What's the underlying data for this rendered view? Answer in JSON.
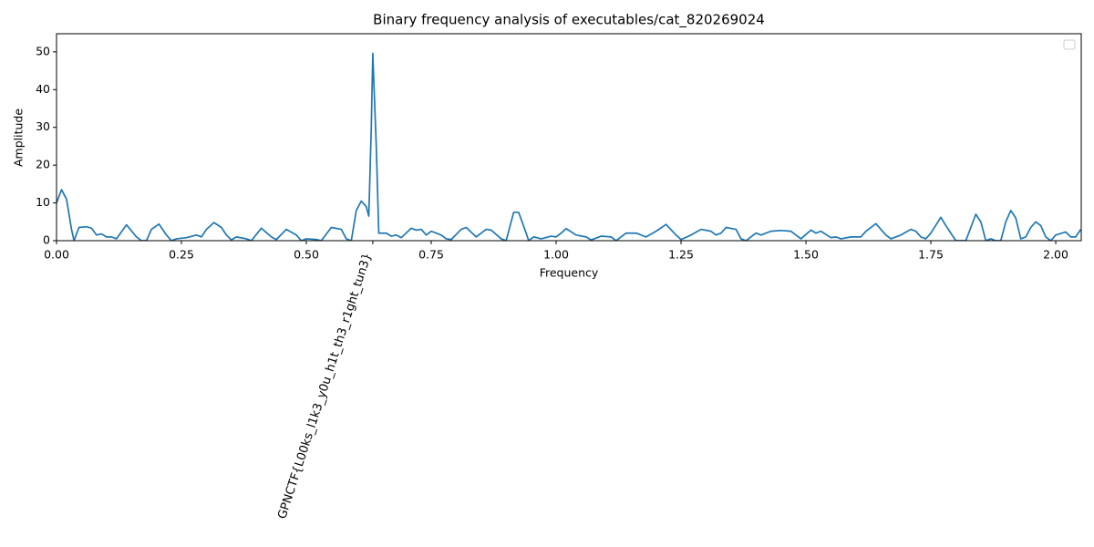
{
  "chart_data": {
    "type": "line",
    "title": "Binary frequency analysis of executables/cat_820269024",
    "xlabel": "Frequency",
    "ylabel": "Amplitude",
    "xlim": [
      0,
      2.051
    ],
    "ylim": [
      0,
      54.8
    ],
    "xticks": [
      {
        "value": 0,
        "label": "0.00"
      },
      {
        "value": 0.25,
        "label": "0.25"
      },
      {
        "value": 0.5,
        "label": "0.50"
      },
      {
        "value": 0.633,
        "label": "GPNCTF{L00ks_l1k3_y0u_h1t_th3_r1ght_tun3}"
      },
      {
        "value": 0.75,
        "label": "0.75"
      },
      {
        "value": 1,
        "label": "1.00"
      },
      {
        "value": 1.25,
        "label": "1.25"
      },
      {
        "value": 1.5,
        "label": "1.50"
      },
      {
        "value": 1.75,
        "label": "1.75"
      },
      {
        "value": 2,
        "label": "2.00"
      }
    ],
    "yticks": [
      0,
      10,
      20,
      30,
      40,
      50
    ],
    "series": [
      {
        "color": "#1f77b4",
        "x": [
          0,
          0.01,
          0.02,
          0.03,
          0.035,
          0.045,
          0.06,
          0.07,
          0.08,
          0.09,
          0.1,
          0.11,
          0.12,
          0.14,
          0.16,
          0.17,
          0.18,
          0.19,
          0.205,
          0.22,
          0.23,
          0.24,
          0.26,
          0.28,
          0.29,
          0.3,
          0.315,
          0.33,
          0.34,
          0.35,
          0.36,
          0.38,
          0.39,
          0.41,
          0.43,
          0.44,
          0.46,
          0.48,
          0.49,
          0.5,
          0.52,
          0.53,
          0.55,
          0.57,
          0.58,
          0.59,
          0.6,
          0.61,
          0.62,
          0.625,
          0.63,
          0.633,
          0.64,
          0.645,
          0.66,
          0.67,
          0.68,
          0.69,
          0.71,
          0.72,
          0.73,
          0.74,
          0.75,
          0.77,
          0.78,
          0.79,
          0.81,
          0.82,
          0.84,
          0.86,
          0.87,
          0.89,
          0.9,
          0.915,
          0.925,
          0.94,
          0.945,
          0.955,
          0.97,
          0.99,
          1,
          1.01,
          1.02,
          1.04,
          1.06,
          1.07,
          1.09,
          1.11,
          1.12,
          1.14,
          1.16,
          1.18,
          1.2,
          1.22,
          1.24,
          1.25,
          1.27,
          1.29,
          1.31,
          1.32,
          1.33,
          1.34,
          1.36,
          1.37,
          1.38,
          1.4,
          1.41,
          1.43,
          1.45,
          1.47,
          1.48,
          1.49,
          1.51,
          1.52,
          1.53,
          1.55,
          1.56,
          1.57,
          1.59,
          1.61,
          1.62,
          1.64,
          1.66,
          1.67,
          1.69,
          1.71,
          1.72,
          1.73,
          1.74,
          1.75,
          1.77,
          1.78,
          1.79,
          1.8,
          1.82,
          1.84,
          1.85,
          1.86,
          1.87,
          1.88,
          1.89,
          1.9,
          1.91,
          1.92,
          1.93,
          1.94,
          1.95,
          1.96,
          1.97,
          1.98,
          1.99,
          2,
          2.02,
          2.03,
          2.04,
          2.05
        ],
        "values": [
          10,
          13.5,
          11,
          3,
          0,
          3.5,
          3.7,
          3.3,
          1.5,
          1.8,
          1,
          1,
          0.5,
          4.2,
          1,
          0,
          0,
          3,
          4.4,
          1.5,
          0,
          0.5,
          0.8,
          1.5,
          1,
          3,
          4.8,
          3.5,
          1.5,
          0.2,
          1,
          0.5,
          0,
          3.3,
          1,
          0.3,
          3,
          1.5,
          0,
          0.5,
          0.3,
          0,
          3.5,
          3,
          0.5,
          0,
          8,
          10.5,
          9,
          6.5,
          30,
          49.6,
          25,
          2,
          2,
          1.2,
          1.5,
          0.8,
          3.3,
          2.8,
          3,
          1.5,
          2.5,
          1.5,
          0.5,
          0.3,
          3,
          3.5,
          1,
          3,
          2.8,
          0.5,
          0,
          7.5,
          7.5,
          2,
          0,
          1,
          0.5,
          1.2,
          1,
          2,
          3.2,
          1.5,
          1,
          0.2,
          1.2,
          1,
          0,
          2,
          2,
          1,
          2.5,
          4.3,
          1.5,
          0.3,
          1.5,
          3,
          2.5,
          1.5,
          2,
          3.5,
          3,
          0.5,
          0,
          2,
          1.5,
          2.5,
          2.7,
          2.5,
          1.5,
          0.5,
          2.8,
          2,
          2.5,
          0.8,
          1,
          0.5,
          1,
          1,
          2.5,
          4.5,
          1.5,
          0.5,
          1.5,
          3,
          2.5,
          1,
          0.5,
          2,
          6.2,
          4,
          2,
          0,
          0,
          7,
          5,
          0,
          0.5,
          0,
          0,
          5,
          8,
          6,
          0.5,
          1,
          3.5,
          5,
          4,
          1,
          0,
          1.5,
          2.3,
          1,
          1,
          3
        ]
      }
    ]
  }
}
